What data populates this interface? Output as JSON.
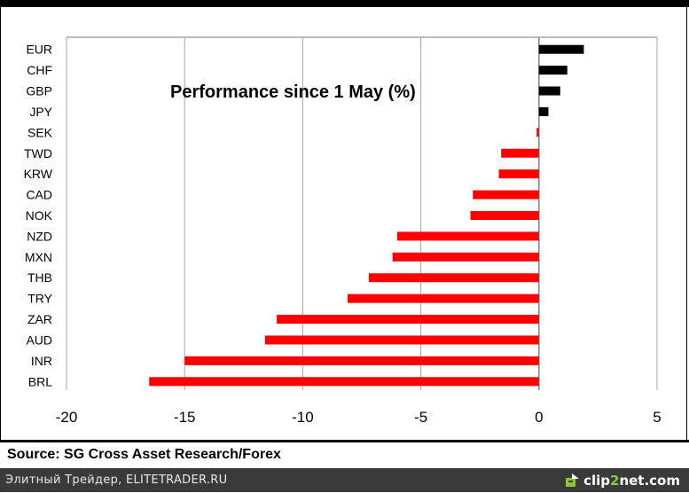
{
  "chart_data": {
    "type": "bar",
    "orientation": "horizontal",
    "title": "Performance since 1 May (%)",
    "xlabel": "",
    "ylabel": "",
    "xlim": [
      -20,
      5
    ],
    "xticks": [
      "-20",
      "-15",
      "-10",
      "-5",
      "0",
      "5"
    ],
    "xtick_values": [
      -20,
      -15,
      -10,
      -5,
      0,
      5
    ],
    "grid": true,
    "categories": [
      "EUR",
      "CHF",
      "GBP",
      "JPY",
      "SEK",
      "TWD",
      "KRW",
      "CAD",
      "NOK",
      "NZD",
      "MXN",
      "THB",
      "TRY",
      "ZAR",
      "AUD",
      "INR",
      "BRL"
    ],
    "values": [
      1.9,
      1.2,
      0.9,
      0.4,
      -0.1,
      -1.6,
      -1.7,
      -2.8,
      -2.9,
      -6.0,
      -6.2,
      -7.2,
      -8.1,
      -11.1,
      -11.6,
      -15.0,
      -16.5
    ],
    "colors": {
      "positive": "#000000",
      "negative": "#ff0000",
      "grid": "#a6a6a6"
    }
  },
  "source": "Source: SG Cross Asset Research/Forex",
  "footer": {
    "site_text": "Элитный Трейдер, ELITETRADER.RU",
    "logo_prefix": "clip",
    "logo_two": "2",
    "logo_suffix": "net.com",
    "logo_icon": "clip2net-logo-icon"
  }
}
